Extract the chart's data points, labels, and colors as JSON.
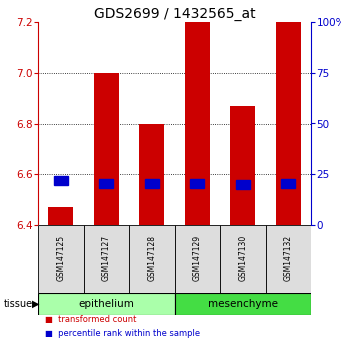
{
  "title": "GDS2699 / 1432565_at",
  "samples": [
    "GSM147125",
    "GSM147127",
    "GSM147128",
    "GSM147129",
    "GSM147130",
    "GSM147132"
  ],
  "red_values": [
    6.47,
    7.0,
    6.8,
    7.2,
    6.87,
    7.2
  ],
  "blue_values": [
    6.575,
    6.563,
    6.563,
    6.563,
    6.56,
    6.563
  ],
  "ymin": 6.4,
  "ymax": 7.2,
  "yticks": [
    6.4,
    6.6,
    6.8,
    7.0,
    7.2
  ],
  "right_yticks": [
    0,
    25,
    50,
    75,
    100
  ],
  "groups": [
    {
      "label": "epithelium",
      "indices": [
        0,
        1,
        2
      ],
      "color": "#aaffaa"
    },
    {
      "label": "mesenchyme",
      "indices": [
        3,
        4,
        5
      ],
      "color": "#44dd44"
    }
  ],
  "tissue_label": "tissue",
  "legend_red": "transformed count",
  "legend_blue": "percentile rank within the sample",
  "bar_color": "#cc0000",
  "blue_color": "#0000cc",
  "bar_width": 0.55,
  "title_fontsize": 10,
  "tick_fontsize": 7.5,
  "label_fontsize": 7,
  "bg_color": "#dddddd"
}
